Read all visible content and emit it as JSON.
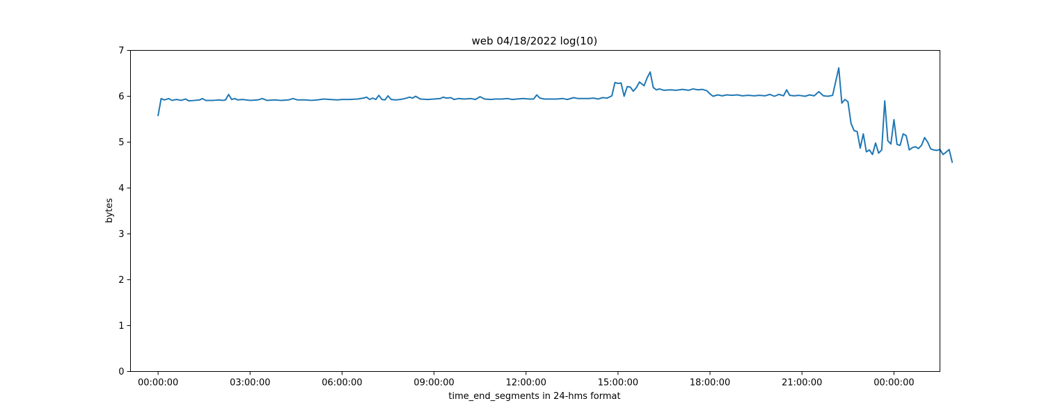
{
  "chart_data": {
    "type": "line",
    "title": "web 04/18/2022 log(10)",
    "xlabel": "time_end_segments in 24-hms format",
    "ylabel": "bytes",
    "xlim": [
      -0.9,
      25.5
    ],
    "ylim": [
      0,
      7
    ],
    "grid": false,
    "x_ticks": [
      {
        "value": 0,
        "label": "00:00:00"
      },
      {
        "value": 3,
        "label": "03:00:00"
      },
      {
        "value": 6,
        "label": "06:00:00"
      },
      {
        "value": 9,
        "label": "09:00:00"
      },
      {
        "value": 12,
        "label": "12:00:00"
      },
      {
        "value": 15,
        "label": "15:00:00"
      },
      {
        "value": 18,
        "label": "18:00:00"
      },
      {
        "value": 21,
        "label": "21:00:00"
      },
      {
        "value": 24,
        "label": "00:00:00"
      }
    ],
    "y_ticks": [
      {
        "value": 0,
        "label": "0"
      },
      {
        "value": 1,
        "label": "1"
      },
      {
        "value": 2,
        "label": "2"
      },
      {
        "value": 3,
        "label": "3"
      },
      {
        "value": 4,
        "label": "4"
      },
      {
        "value": 5,
        "label": "5"
      },
      {
        "value": 6,
        "label": "6"
      },
      {
        "value": 7,
        "label": "7"
      }
    ],
    "series": [
      {
        "color": "#1f77b4",
        "points": [
          [
            0.0,
            5.58
          ],
          [
            0.1,
            5.95
          ],
          [
            0.2,
            5.92
          ],
          [
            0.35,
            5.95
          ],
          [
            0.45,
            5.91
          ],
          [
            0.6,
            5.93
          ],
          [
            0.75,
            5.91
          ],
          [
            0.9,
            5.94
          ],
          [
            1.0,
            5.9
          ],
          [
            1.2,
            5.91
          ],
          [
            1.35,
            5.92
          ],
          [
            1.45,
            5.95
          ],
          [
            1.55,
            5.91
          ],
          [
            1.8,
            5.91
          ],
          [
            2.0,
            5.92
          ],
          [
            2.1,
            5.91
          ],
          [
            2.2,
            5.92
          ],
          [
            2.3,
            6.04
          ],
          [
            2.4,
            5.93
          ],
          [
            2.5,
            5.95
          ],
          [
            2.6,
            5.92
          ],
          [
            2.75,
            5.93
          ],
          [
            3.0,
            5.91
          ],
          [
            3.25,
            5.92
          ],
          [
            3.4,
            5.95
          ],
          [
            3.55,
            5.91
          ],
          [
            3.8,
            5.92
          ],
          [
            4.0,
            5.91
          ],
          [
            4.25,
            5.92
          ],
          [
            4.4,
            5.95
          ],
          [
            4.55,
            5.92
          ],
          [
            4.8,
            5.92
          ],
          [
            5.0,
            5.91
          ],
          [
            5.2,
            5.92
          ],
          [
            5.4,
            5.94
          ],
          [
            5.6,
            5.93
          ],
          [
            5.85,
            5.92
          ],
          [
            6.0,
            5.93
          ],
          [
            6.25,
            5.93
          ],
          [
            6.5,
            5.94
          ],
          [
            6.7,
            5.96
          ],
          [
            6.8,
            5.98
          ],
          [
            6.9,
            5.93
          ],
          [
            7.0,
            5.96
          ],
          [
            7.1,
            5.93
          ],
          [
            7.2,
            6.02
          ],
          [
            7.3,
            5.93
          ],
          [
            7.4,
            5.92
          ],
          [
            7.5,
            6.01
          ],
          [
            7.6,
            5.93
          ],
          [
            7.75,
            5.92
          ],
          [
            7.9,
            5.93
          ],
          [
            8.05,
            5.95
          ],
          [
            8.2,
            5.98
          ],
          [
            8.3,
            5.96
          ],
          [
            8.4,
            6.0
          ],
          [
            8.55,
            5.94
          ],
          [
            8.8,
            5.93
          ],
          [
            9.0,
            5.94
          ],
          [
            9.2,
            5.95
          ],
          [
            9.3,
            5.98
          ],
          [
            9.4,
            5.96
          ],
          [
            9.55,
            5.97
          ],
          [
            9.65,
            5.93
          ],
          [
            9.8,
            5.95
          ],
          [
            10.0,
            5.94
          ],
          [
            10.2,
            5.95
          ],
          [
            10.35,
            5.93
          ],
          [
            10.5,
            5.99
          ],
          [
            10.65,
            5.94
          ],
          [
            10.85,
            5.93
          ],
          [
            11.0,
            5.94
          ],
          [
            11.2,
            5.94
          ],
          [
            11.4,
            5.95
          ],
          [
            11.55,
            5.93
          ],
          [
            11.7,
            5.94
          ],
          [
            11.9,
            5.95
          ],
          [
            12.1,
            5.94
          ],
          [
            12.25,
            5.94
          ],
          [
            12.35,
            6.03
          ],
          [
            12.45,
            5.96
          ],
          [
            12.6,
            5.94
          ],
          [
            12.8,
            5.94
          ],
          [
            13.0,
            5.94
          ],
          [
            13.2,
            5.95
          ],
          [
            13.35,
            5.93
          ],
          [
            13.55,
            5.97
          ],
          [
            13.7,
            5.95
          ],
          [
            13.9,
            5.95
          ],
          [
            14.05,
            5.95
          ],
          [
            14.2,
            5.96
          ],
          [
            14.35,
            5.94
          ],
          [
            14.5,
            5.97
          ],
          [
            14.65,
            5.96
          ],
          [
            14.8,
            6.01
          ],
          [
            14.9,
            6.3
          ],
          [
            15.0,
            6.28
          ],
          [
            15.1,
            6.29
          ],
          [
            15.2,
            6.0
          ],
          [
            15.3,
            6.21
          ],
          [
            15.4,
            6.2
          ],
          [
            15.5,
            6.11
          ],
          [
            15.6,
            6.19
          ],
          [
            15.7,
            6.31
          ],
          [
            15.85,
            6.23
          ],
          [
            15.95,
            6.4
          ],
          [
            16.05,
            6.53
          ],
          [
            16.15,
            6.19
          ],
          [
            16.25,
            6.14
          ],
          [
            16.35,
            6.16
          ],
          [
            16.5,
            6.13
          ],
          [
            16.7,
            6.14
          ],
          [
            16.9,
            6.13
          ],
          [
            17.1,
            6.15
          ],
          [
            17.3,
            6.13
          ],
          [
            17.45,
            6.16
          ],
          [
            17.6,
            6.14
          ],
          [
            17.75,
            6.15
          ],
          [
            17.9,
            6.12
          ],
          [
            18.0,
            6.05
          ],
          [
            18.1,
            6.0
          ],
          [
            18.25,
            6.03
          ],
          [
            18.4,
            6.01
          ],
          [
            18.55,
            6.03
          ],
          [
            18.7,
            6.02
          ],
          [
            18.9,
            6.03
          ],
          [
            19.05,
            6.01
          ],
          [
            19.25,
            6.02
          ],
          [
            19.45,
            6.01
          ],
          [
            19.6,
            6.02
          ],
          [
            19.8,
            6.01
          ],
          [
            19.95,
            6.04
          ],
          [
            20.1,
            6.0
          ],
          [
            20.25,
            6.04
          ],
          [
            20.4,
            6.01
          ],
          [
            20.5,
            6.14
          ],
          [
            20.6,
            6.02
          ],
          [
            20.75,
            6.01
          ],
          [
            20.9,
            6.02
          ],
          [
            21.1,
            6.0
          ],
          [
            21.25,
            6.03
          ],
          [
            21.4,
            6.01
          ],
          [
            21.55,
            6.1
          ],
          [
            21.7,
            6.01
          ],
          [
            21.85,
            6.0
          ],
          [
            22.0,
            6.02
          ],
          [
            22.1,
            6.32
          ],
          [
            22.2,
            6.62
          ],
          [
            22.3,
            5.85
          ],
          [
            22.4,
            5.93
          ],
          [
            22.5,
            5.88
          ],
          [
            22.6,
            5.41
          ],
          [
            22.7,
            5.25
          ],
          [
            22.8,
            5.23
          ],
          [
            22.9,
            4.87
          ],
          [
            23.0,
            5.18
          ],
          [
            23.1,
            4.79
          ],
          [
            23.2,
            4.83
          ],
          [
            23.3,
            4.73
          ],
          [
            23.4,
            4.98
          ],
          [
            23.5,
            4.76
          ],
          [
            23.6,
            4.83
          ],
          [
            23.7,
            5.9
          ],
          [
            23.8,
            5.03
          ],
          [
            23.9,
            4.96
          ],
          [
            24.0,
            5.49
          ],
          [
            24.1,
            4.95
          ],
          [
            24.2,
            4.93
          ],
          [
            24.3,
            5.18
          ],
          [
            24.4,
            5.14
          ],
          [
            24.5,
            4.83
          ],
          [
            24.6,
            4.88
          ],
          [
            24.7,
            4.9
          ],
          [
            24.8,
            4.86
          ],
          [
            24.9,
            4.93
          ],
          [
            25.0,
            5.1
          ],
          [
            25.1,
            5.0
          ],
          [
            25.2,
            4.85
          ],
          [
            25.3,
            4.83
          ],
          [
            25.4,
            4.82
          ],
          [
            25.5,
            4.84
          ],
          [
            25.6,
            4.73
          ],
          [
            25.7,
            4.78
          ],
          [
            25.8,
            4.84
          ],
          [
            25.9,
            4.56
          ]
        ]
      }
    ]
  }
}
